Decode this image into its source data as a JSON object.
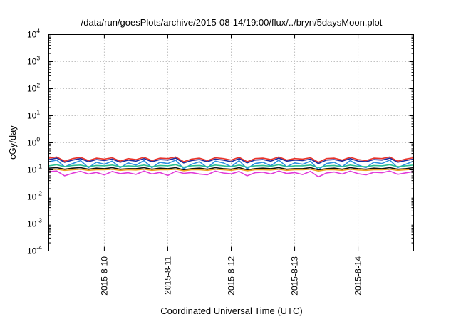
{
  "chart_data": {
    "type": "line",
    "title": "/data/run/goesPlots/archive/2015-08-14/19:00/flux/../bryn/5daysMoon.plot",
    "xlabel": "Coordinated Universal Time (UTC)",
    "ylabel": "cGy/day",
    "yscale": "log",
    "ylim": [
      0.0001,
      10000
    ],
    "y_ticks": [
      {
        "base": "10",
        "exp": "-4"
      },
      {
        "base": "10",
        "exp": "-3"
      },
      {
        "base": "10",
        "exp": "-2"
      },
      {
        "base": "10",
        "exp": "-1"
      },
      {
        "base": "10",
        "exp": "0"
      },
      {
        "base": "10",
        "exp": "1"
      },
      {
        "base": "10",
        "exp": "2"
      },
      {
        "base": "10",
        "exp": "3"
      },
      {
        "base": "10",
        "exp": "4"
      }
    ],
    "xlim": [
      "2015-08-09 03:00",
      "2015-08-14 21:00"
    ],
    "x_ticks": [
      "2015-8-10",
      "2015-8-11",
      "2015-8-12",
      "2015-8-13",
      "2015-8-14"
    ],
    "grid": true,
    "sample_hours": 3,
    "series": [
      {
        "color": "#e8332a",
        "values": [
          0.27,
          0.3,
          0.21,
          0.26,
          0.29,
          0.22,
          0.27,
          0.25,
          0.28,
          0.21,
          0.26,
          0.24,
          0.29,
          0.22,
          0.27,
          0.26,
          0.3,
          0.2,
          0.25,
          0.27,
          0.22,
          0.28,
          0.26,
          0.23,
          0.29,
          0.2,
          0.26,
          0.27,
          0.24,
          0.3,
          0.23,
          0.26,
          0.25,
          0.28,
          0.19,
          0.26,
          0.27,
          0.23,
          0.29,
          0.24,
          0.22,
          0.27,
          0.26,
          0.3,
          0.21,
          0.25,
          0.28
        ]
      },
      {
        "color": "#1f2a9c",
        "values": [
          0.24,
          0.27,
          0.19,
          0.23,
          0.26,
          0.2,
          0.24,
          0.22,
          0.25,
          0.19,
          0.23,
          0.21,
          0.26,
          0.2,
          0.24,
          0.23,
          0.27,
          0.18,
          0.22,
          0.24,
          0.2,
          0.25,
          0.23,
          0.2,
          0.26,
          0.18,
          0.23,
          0.24,
          0.21,
          0.27,
          0.21,
          0.23,
          0.22,
          0.25,
          0.17,
          0.23,
          0.24,
          0.21,
          0.26,
          0.21,
          0.2,
          0.24,
          0.23,
          0.27,
          0.19,
          0.22,
          0.25
        ]
      },
      {
        "color": "#2e8de0",
        "values": [
          0.2,
          0.23,
          0.13,
          0.17,
          0.22,
          0.12,
          0.19,
          0.16,
          0.21,
          0.12,
          0.18,
          0.15,
          0.22,
          0.12,
          0.19,
          0.17,
          0.23,
          0.11,
          0.16,
          0.2,
          0.12,
          0.21,
          0.18,
          0.13,
          0.22,
          0.11,
          0.17,
          0.19,
          0.14,
          0.23,
          0.13,
          0.18,
          0.16,
          0.21,
          0.1,
          0.17,
          0.19,
          0.13,
          0.22,
          0.15,
          0.12,
          0.19,
          0.17,
          0.23,
          0.12,
          0.16,
          0.21
        ]
      },
      {
        "color": "#2bbf8f",
        "values": [
          0.14,
          0.155,
          0.13,
          0.145,
          0.15,
          0.13,
          0.145,
          0.14,
          0.15,
          0.13,
          0.14,
          0.135,
          0.15,
          0.13,
          0.145,
          0.14,
          0.155,
          0.125,
          0.14,
          0.145,
          0.13,
          0.15,
          0.14,
          0.13,
          0.15,
          0.125,
          0.14,
          0.145,
          0.135,
          0.155,
          0.13,
          0.14,
          0.14,
          0.15,
          0.12,
          0.14,
          0.145,
          0.13,
          0.15,
          0.135,
          0.13,
          0.145,
          0.14,
          0.155,
          0.13,
          0.14,
          0.15
        ]
      },
      {
        "color": "#111111",
        "values": [
          0.115,
          0.12,
          0.105,
          0.115,
          0.12,
          0.105,
          0.115,
          0.11,
          0.12,
          0.105,
          0.11,
          0.11,
          0.12,
          0.105,
          0.115,
          0.11,
          0.12,
          0.1,
          0.11,
          0.115,
          0.105,
          0.12,
          0.11,
          0.105,
          0.12,
          0.1,
          0.11,
          0.115,
          0.11,
          0.12,
          0.105,
          0.11,
          0.11,
          0.12,
          0.1,
          0.11,
          0.115,
          0.105,
          0.12,
          0.11,
          0.105,
          0.115,
          0.11,
          0.12,
          0.105,
          0.11,
          0.12
        ]
      },
      {
        "color": "#f0a020",
        "values": [
          0.1,
          0.105,
          0.095,
          0.1,
          0.105,
          0.095,
          0.1,
          0.1,
          0.105,
          0.095,
          0.1,
          0.098,
          0.105,
          0.095,
          0.1,
          0.1,
          0.105,
          0.092,
          0.1,
          0.1,
          0.095,
          0.105,
          0.1,
          0.095,
          0.105,
          0.092,
          0.1,
          0.1,
          0.098,
          0.105,
          0.095,
          0.1,
          0.1,
          0.105,
          0.09,
          0.1,
          0.1,
          0.095,
          0.105,
          0.098,
          0.095,
          0.1,
          0.1,
          0.105,
          0.095,
          0.1,
          0.105
        ]
      },
      {
        "color": "#e23ad8",
        "values": [
          0.085,
          0.09,
          0.06,
          0.075,
          0.088,
          0.07,
          0.08,
          0.065,
          0.087,
          0.072,
          0.078,
          0.068,
          0.09,
          0.07,
          0.08,
          0.062,
          0.088,
          0.074,
          0.079,
          0.07,
          0.066,
          0.089,
          0.076,
          0.071,
          0.087,
          0.06,
          0.078,
          0.082,
          0.07,
          0.09,
          0.073,
          0.079,
          0.067,
          0.088,
          0.055,
          0.076,
          0.083,
          0.07,
          0.089,
          0.072,
          0.065,
          0.081,
          0.078,
          0.09,
          0.068,
          0.077,
          0.086
        ]
      }
    ]
  }
}
